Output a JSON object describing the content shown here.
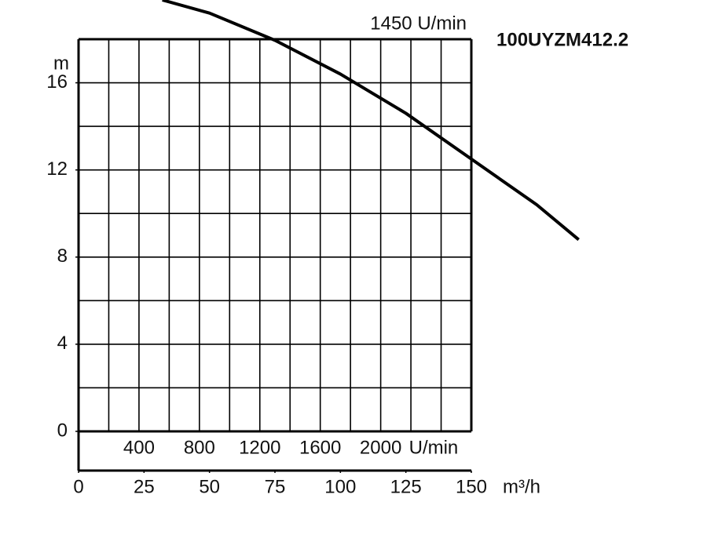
{
  "chart_data": {
    "type": "line",
    "title": "100UYZM412.2",
    "subtitle": "1450 U/min",
    "y_label": "m",
    "x_label": "m³/h",
    "x2_label": "U/min",
    "x": [
      32,
      50,
      75,
      100,
      125,
      150,
      175,
      191
    ],
    "series": [
      {
        "color": "#000000",
        "values": [
          19.8,
          19.2,
          17.95,
          16.4,
          14.6,
          12.5,
          10.4,
          8.8
        ]
      }
    ],
    "xlim": [
      0,
      150
    ],
    "xticks": [
      0,
      25,
      50,
      75,
      100,
      125,
      150
    ],
    "ylim": [
      0,
      18
    ],
    "yticks": [
      0,
      4,
      8,
      12,
      16
    ],
    "ygrid": [
      2,
      4,
      6,
      8,
      10,
      12,
      14,
      16
    ],
    "x2lim": [
      0,
      2600
    ],
    "x2ticks": [
      400,
      800,
      1200,
      1600,
      2000
    ],
    "x2grid": [
      200,
      400,
      600,
      800,
      1000,
      1200,
      1400,
      1600,
      1800,
      2000,
      2200,
      2400
    ],
    "grid": true
  }
}
